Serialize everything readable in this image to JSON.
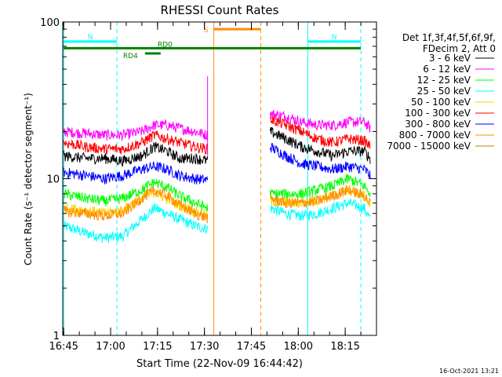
{
  "chart_data": {
    "type": "line",
    "title": "RHESSI Count Rates",
    "xlabel": "Start Time (22-Nov-09 16:44:42)",
    "ylabel": "Count Rate (s⁻¹ detector segment⁻¹)",
    "yscale": "log",
    "xlim": [
      "16:44:42",
      "18:25:00"
    ],
    "ylim": [
      1,
      100
    ],
    "x_ticks": [
      "16:45",
      "17:00",
      "17:15",
      "17:30",
      "17:45",
      "18:00",
      "18:15"
    ],
    "y_ticks": [
      "1",
      "10",
      "100"
    ],
    "legend_header": [
      "Det 1f,3f,4f,5f,6f,9f,",
      "FDecim 2, Att 0"
    ],
    "legend_position": "right",
    "series": [
      {
        "name": "3 - 6 keV",
        "color": "#000000",
        "segments": [
          {
            "x": [
              "16:45",
              "16:52",
              "16:58",
              "17:04",
              "17:10",
              "17:14",
              "17:18",
              "17:22",
              "17:27",
              "17:31"
            ],
            "y": [
              14,
              13.5,
              13.5,
              13,
              14,
              16,
              15,
              13.5,
              13.5,
              13
            ]
          },
          {
            "x": [
              "17:51",
              "17:56",
              "18:01",
              "18:06",
              "18:11",
              "18:16",
              "18:21",
              "18:23"
            ],
            "y": [
              20,
              18,
              16,
              15,
              14,
              15,
              15,
              13.5
            ]
          }
        ]
      },
      {
        "name": "6 - 12 keV",
        "color": "#ff00ff",
        "segments": [
          {
            "x": [
              "16:45",
              "16:52",
              "16:58",
              "17:04",
              "17:10",
              "17:14",
              "17:18",
              "17:22",
              "17:27",
              "17:31"
            ],
            "y": [
              20,
              19.5,
              19,
              19,
              20,
              22,
              22,
              21,
              20,
              19
            ]
          },
          {
            "x": [
              "17:51",
              "17:56",
              "18:01",
              "18:06",
              "18:11",
              "18:16",
              "18:21",
              "18:23"
            ],
            "y": [
              26,
              25,
              23,
              22,
              22,
              23,
              23,
              21
            ]
          }
        ]
      },
      {
        "name": "12 - 25 keV",
        "color": "#00ff00",
        "segments": [
          {
            "x": [
              "16:45",
              "16:52",
              "16:58",
              "17:04",
              "17:10",
              "17:14",
              "17:18",
              "17:22",
              "17:27",
              "17:31"
            ],
            "y": [
              8,
              7.5,
              7.2,
              7.5,
              8.5,
              9.5,
              8.8,
              7.8,
              7,
              6.5
            ]
          },
          {
            "x": [
              "17:51",
              "17:56",
              "18:01",
              "18:06",
              "18:11",
              "18:16",
              "18:21",
              "18:23"
            ],
            "y": [
              8,
              8,
              8,
              8.5,
              9,
              10,
              9,
              8
            ]
          }
        ]
      },
      {
        "name": "25 - 50 keV",
        "color": "#00ffff",
        "segments": [
          {
            "x": [
              "16:45",
              "16:52",
              "16:58",
              "17:04",
              "17:10",
              "17:14",
              "17:18",
              "17:22",
              "17:27",
              "17:31"
            ],
            "y": [
              5,
              4.5,
              4.2,
              4.3,
              5.5,
              6.5,
              6,
              5.5,
              5,
              4.8
            ]
          },
          {
            "x": [
              "17:51",
              "17:56",
              "18:01",
              "18:06",
              "18:11",
              "18:16",
              "18:21",
              "18:23"
            ],
            "y": [
              6.5,
              6,
              5.8,
              6,
              6.5,
              7,
              6.5,
              5.5
            ]
          }
        ]
      },
      {
        "name": "50 - 100 keV",
        "color": "#ffcc00",
        "segments": [
          {
            "x": [
              "16:45",
              "16:52",
              "16:58",
              "17:04",
              "17:10",
              "17:14",
              "17:18",
              "17:22",
              "17:27",
              "17:31"
            ],
            "y": [
              6.5,
              6.3,
              6,
              6.3,
              7.5,
              8.2,
              7.5,
              6.8,
              6.2,
              5.8
            ]
          },
          {
            "x": [
              "17:51",
              "17:56",
              "18:01",
              "18:06",
              "18:11",
              "18:16",
              "18:21",
              "18:23"
            ],
            "y": [
              7.2,
              7,
              7,
              7.3,
              7.8,
              8.5,
              7.8,
              7
            ]
          }
        ]
      },
      {
        "name": "100 - 300 keV",
        "color": "#ff0000",
        "segments": [
          {
            "x": [
              "16:45",
              "16:52",
              "16:58",
              "17:04",
              "17:10",
              "17:14",
              "17:18",
              "17:22",
              "17:27",
              "17:31"
            ],
            "y": [
              17,
              16,
              15.5,
              15.5,
              17,
              19,
              18,
              17,
              16,
              15.5
            ]
          },
          {
            "x": [
              "17:51",
              "17:56",
              "18:01",
              "18:06",
              "18:11",
              "18:16",
              "18:21",
              "18:23"
            ],
            "y": [
              24,
              22,
              20,
              18,
              17,
              18,
              17.5,
              16
            ]
          }
        ]
      },
      {
        "name": "300 - 800 keV",
        "color": "#0000ff",
        "segments": [
          {
            "x": [
              "16:45",
              "16:52",
              "16:58",
              "17:04",
              "17:10",
              "17:14",
              "17:18",
              "17:22",
              "17:27",
              "17:31"
            ],
            "y": [
              11,
              10.5,
              10,
              10.5,
              11.5,
              12,
              11.5,
              10.5,
              10,
              9.8
            ]
          },
          {
            "x": [
              "17:51",
              "17:56",
              "18:01",
              "18:06",
              "18:11",
              "18:16",
              "18:21",
              "18:23"
            ],
            "y": [
              16,
              14,
              12.5,
              12,
              11.5,
              12,
              11.5,
              10.5
            ]
          }
        ]
      },
      {
        "name": "800 - 7000 keV",
        "color": "#ff8c00",
        "segments": [
          {
            "x": [
              "16:45",
              "16:52",
              "16:58",
              "17:04",
              "17:10",
              "17:14",
              "17:18",
              "17:22",
              "17:27",
              "17:31"
            ],
            "y": [
              6.2,
              6,
              5.8,
              6,
              7.5,
              8.5,
              7.8,
              6.8,
              6,
              5.6
            ]
          },
          {
            "x": [
              "17:51",
              "17:56",
              "18:01",
              "18:06",
              "18:11",
              "18:16",
              "18:21",
              "18:23"
            ],
            "y": [
              7.5,
              7,
              7,
              7.2,
              7.8,
              8.5,
              7.8,
              7
            ]
          }
        ]
      },
      {
        "name": "7000 - 15000 keV",
        "color": "#b8860b",
        "segments": []
      }
    ],
    "annotations": [
      {
        "label": "N",
        "color": "#00ffff",
        "style": "bar",
        "x": [
          "16:45",
          "17:02"
        ],
        "y": 75
      },
      {
        "label": "N",
        "color": "#00ffff",
        "style": "bar",
        "x": [
          "18:03",
          "18:20"
        ],
        "y": 75
      },
      {
        "label": "S",
        "color": "#ff8c00",
        "style": "bar",
        "x": [
          "17:33",
          "17:48"
        ],
        "y": 90
      },
      {
        "label": "RD0",
        "color": "#008000",
        "style": "bar",
        "x": [
          "16:45",
          "18:20"
        ],
        "y": 68
      },
      {
        "label": "RD4",
        "color": "#008000",
        "style": "bar",
        "x": [
          "17:11",
          "17:16"
        ],
        "y": 63
      }
    ],
    "vertical_markers": [
      {
        "x": "16:45",
        "color": "#00ffff",
        "dash": false
      },
      {
        "x": "17:02",
        "color": "#00ffff",
        "dash": true
      },
      {
        "x": "17:33",
        "color": "#ff8c00",
        "dash": false
      },
      {
        "x": "17:48",
        "color": "#ff8c00",
        "dash": true
      },
      {
        "x": "18:03",
        "color": "#00ffff",
        "dash": false
      },
      {
        "x": "18:20",
        "color": "#00ffff",
        "dash": true
      }
    ],
    "footer_date": "16-Oct-2021 13:21"
  }
}
